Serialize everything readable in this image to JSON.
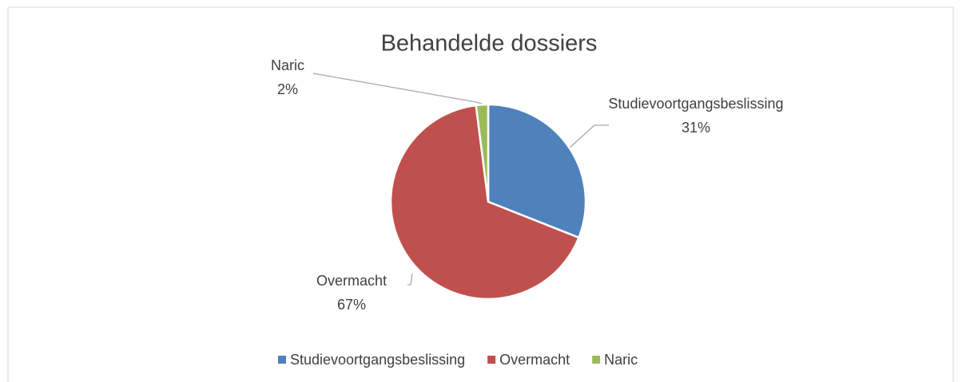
{
  "chart_data": {
    "type": "pie",
    "title": "Behandelde dossiers",
    "categories": [
      "Studievoortgangsbeslissing",
      "Overmacht",
      "Naric"
    ],
    "values": [
      31,
      67,
      2
    ],
    "value_labels": [
      "31%",
      "67%",
      "2%"
    ],
    "colors": [
      "#4f81bd",
      "#c0504d",
      "#9bbb59"
    ],
    "legend": "bottom"
  }
}
